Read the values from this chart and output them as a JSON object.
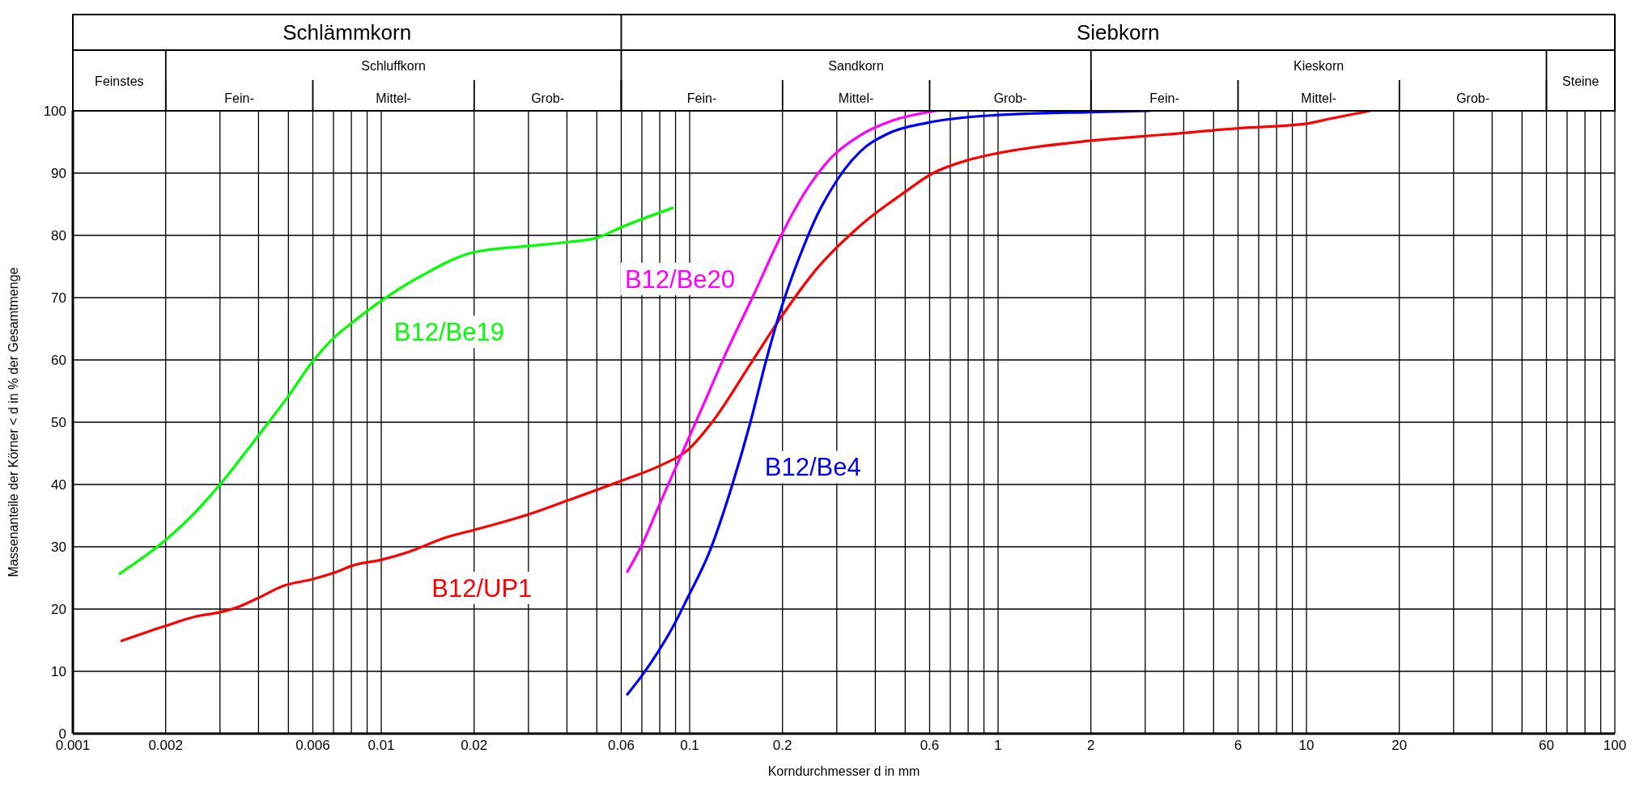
{
  "chart_data": {
    "type": "line",
    "xlabel": "Korndurchmesser d in mm",
    "ylabel": "Massenanteile der Körner < d in % der Gesamtmenge",
    "log": "x",
    "grid": true,
    "marker": "none",
    "line_style": "solid",
    "xlim": [
      0.001,
      100
    ],
    "ylim": [
      0,
      100
    ],
    "xticks": [
      0.001,
      0.002,
      {
        "value": 0.003,
        "label": null
      },
      {
        "value": 0.004,
        "label": null
      },
      {
        "value": 0.005,
        "label": null
      },
      0.006,
      {
        "value": 0.007,
        "label": null
      },
      {
        "value": 0.008,
        "label": null
      },
      {
        "value": 0.009,
        "label": null
      },
      0.01,
      0.02,
      {
        "value": 0.03,
        "label": null
      },
      {
        "value": 0.04,
        "label": null
      },
      {
        "value": 0.05,
        "label": null
      },
      0.06,
      {
        "value": 0.07,
        "label": null
      },
      {
        "value": 0.08,
        "label": null
      },
      {
        "value": 0.09,
        "label": null
      },
      0.1,
      0.2,
      {
        "value": 0.3,
        "label": null
      },
      {
        "value": 0.4,
        "label": null
      },
      {
        "value": 0.5,
        "label": null
      },
      0.6,
      {
        "value": 0.7,
        "label": null
      },
      {
        "value": 0.8,
        "label": null
      },
      {
        "value": 0.9,
        "label": null
      },
      1,
      2,
      {
        "value": 3,
        "label": null
      },
      {
        "value": 4,
        "label": null
      },
      {
        "value": 5,
        "label": null
      },
      6,
      {
        "value": 7,
        "label": null
      },
      {
        "value": 8,
        "label": null
      },
      {
        "value": 9,
        "label": null
      },
      10,
      20,
      {
        "value": 30,
        "label": null
      },
      {
        "value": 40,
        "label": null
      },
      {
        "value": 50,
        "label": null
      },
      60,
      {
        "value": 70,
        "label": null
      },
      {
        "value": 80,
        "label": null
      },
      {
        "value": 90,
        "label": null
      },
      100
    ],
    "yticks": [
      0,
      10,
      20,
      30,
      40,
      50,
      60,
      70,
      80,
      90,
      100
    ],
    "annotations": [
      "Schlämmkorn",
      "Siebkorn",
      "Feinstes",
      "Schluffkorn",
      "Fein-",
      "Mittel-",
      "Grob-",
      "Sandkorn",
      "Fein-",
      "Mittel-",
      "Grob-",
      "Kieskorn",
      "Fein-",
      "Mittel-",
      "Grob-",
      "Steine"
    ],
    "series": [
      {
        "name": "B12/Be19",
        "color": "#00ff00",
        "x": [
          0.00142,
          0.002,
          0.0025,
          0.003,
          0.004,
          0.005,
          0.006,
          0.007,
          0.0081,
          0.01,
          0.0136,
          0.02,
          0.03,
          0.04,
          0.05,
          0.06,
          0.088
        ],
        "values": [
          25.7,
          31.1,
          35.6,
          40,
          47.9,
          54.2,
          59.8,
          63.5,
          66.1,
          69.5,
          73.6,
          77.3,
          78.3,
          78.9,
          79.6,
          81.3,
          84.4
        ]
      },
      {
        "name": "B12/UP1",
        "color": "#ff0000",
        "x": [
          0.00144,
          0.002,
          0.0025,
          0.003,
          0.0035,
          0.004,
          0.0048,
          0.006,
          0.0071,
          0.0081,
          0.01,
          0.0123,
          0.0162,
          0.02,
          0.03,
          0.04,
          0.06,
          0.08,
          0.099,
          0.117,
          0.16,
          0.195,
          0.256,
          0.358,
          0.5,
          0.61,
          0.8,
          1,
          2,
          3.5,
          6,
          9.9,
          12.1,
          16.1
        ],
        "values": [
          14.9,
          17.3,
          18.8,
          19.5,
          20.5,
          21.8,
          23.7,
          24.8,
          25.9,
          27,
          27.9,
          29.2,
          31.5,
          32.7,
          35.2,
          37.4,
          40.6,
          43,
          45.6,
          49.7,
          59.9,
          66.4,
          74.4,
          81.6,
          87,
          89.9,
          92.1,
          93.2,
          95.2,
          96.2,
          97.2,
          97.9,
          98.8,
          100
        ]
      },
      {
        "name": "B12/Be20",
        "color": "#ff00ff",
        "x": [
          0.0628,
          0.07,
          0.0787,
          0.0886,
          0.0996,
          0.114,
          0.13,
          0.16,
          0.199,
          0.235,
          0.288,
          0.358,
          0.453,
          0.63
        ],
        "values": [
          26,
          30.3,
          36.1,
          41.9,
          47.6,
          54.2,
          60.7,
          70.1,
          80.2,
          86.7,
          92.5,
          96.1,
          98.4,
          100
        ]
      },
      {
        "name": "B12/Be4",
        "color": "#0000ff",
        "x": [
          0.0628,
          0.07,
          0.0787,
          0.0886,
          0.098,
          0.116,
          0.137,
          0.157,
          0.177,
          0.195,
          0.216,
          0.235,
          0.26,
          0.288,
          0.318,
          0.358,
          0.438,
          0.593,
          0.98,
          2,
          3.1
        ],
        "values": [
          6.3,
          9.3,
          13,
          17.3,
          21.6,
          29.2,
          39.7,
          49.8,
          59.9,
          67.2,
          73.7,
          78.4,
          83.4,
          87.4,
          90.6,
          93.5,
          96.3,
          98.1,
          99.3,
          99.8,
          100
        ]
      }
    ]
  }
}
